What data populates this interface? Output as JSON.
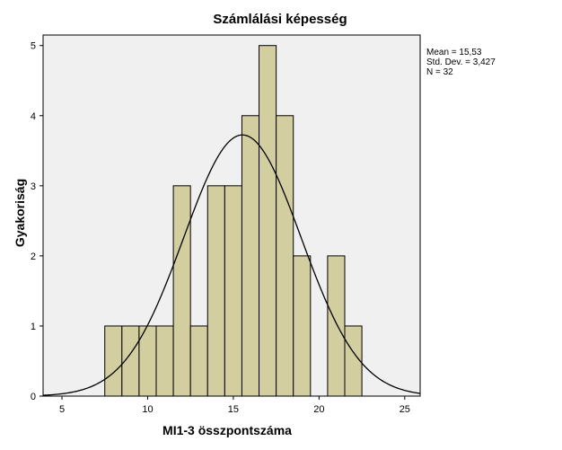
{
  "chart_data": {
    "type": "bar",
    "title": "Számlálási képesség",
    "xlabel": "MI1-3 összpontszáma",
    "ylabel": "Gyakoriság",
    "xlim": [
      3.9,
      25.9
    ],
    "ylim": [
      0,
      5.15
    ],
    "xticks": [
      "5",
      "10",
      "15",
      "20",
      "25"
    ],
    "xtick_values": [
      5,
      10,
      15,
      20,
      25
    ],
    "yticks": [
      "0",
      "1",
      "2",
      "3",
      "4",
      "5"
    ],
    "ytick_values": [
      0,
      1,
      2,
      3,
      4,
      5
    ],
    "bin_width": 1,
    "bins": [
      {
        "start": 7.5,
        "end": 8.5,
        "count": 1
      },
      {
        "start": 8.5,
        "end": 9.5,
        "count": 1
      },
      {
        "start": 9.5,
        "end": 10.5,
        "count": 1
      },
      {
        "start": 10.5,
        "end": 11.5,
        "count": 1
      },
      {
        "start": 11.5,
        "end": 12.5,
        "count": 3
      },
      {
        "start": 12.5,
        "end": 13.5,
        "count": 1
      },
      {
        "start": 13.5,
        "end": 14.5,
        "count": 3
      },
      {
        "start": 14.5,
        "end": 15.5,
        "count": 3
      },
      {
        "start": 15.5,
        "end": 16.5,
        "count": 4
      },
      {
        "start": 16.5,
        "end": 17.5,
        "count": 5
      },
      {
        "start": 17.5,
        "end": 18.5,
        "count": 4
      },
      {
        "start": 18.5,
        "end": 19.5,
        "count": 2
      },
      {
        "start": 19.5,
        "end": 20.5,
        "count": 0
      },
      {
        "start": 20.5,
        "end": 21.5,
        "count": 2
      },
      {
        "start": 21.5,
        "end": 22.5,
        "count": 1
      }
    ],
    "normal_curve": {
      "mean": 15.53,
      "sd": 3.427,
      "n": 32
    },
    "stats_text": [
      "Mean = 15,53",
      "Std. Dev. = 3,427",
      "N = 32"
    ],
    "colors": {
      "bar_fill": "#d3cea0",
      "plot_background": "#f0f0f0",
      "curve": "#000000"
    }
  }
}
